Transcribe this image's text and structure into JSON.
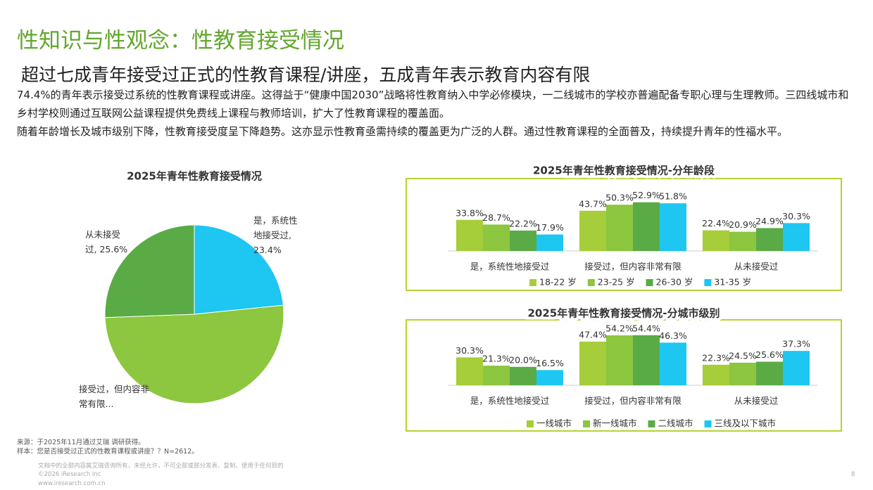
{
  "header": {
    "title": "性知识与性观念：性教育接受情况",
    "subtitle": "超过七成青年接受过正式的性教育课程/讲座，五成青年表示教育内容有限"
  },
  "body": {
    "paragraphs": [
      "74.4%的青年表示接受过系统的性教育课程或讲座。这得益于“健康中国2030”战略将性教育纳入中学必修模块，一二线城市的学校亦普遍配备专职心理与生理教师。三四线城市和乡村学校则通过互联网公益课程提供免费线上课程与教师培训，扩大了性教育课程的覆盖面。",
      "随着年龄增长及城市级别下降，性教育接受度呈下降趋势。这亦显示性教育亟需持续的覆盖更为广泛的人群。通过性教育课程的全面普及，持续提升青年的性福水平。"
    ]
  },
  "chart_data": [
    {
      "type": "pie",
      "title": "2025年青年性教育接受情况",
      "labels": [
        "是，系统性地接受过, 23.4%",
        "接受过，但内容非常有限...",
        "从未接受过, 25.6%"
      ],
      "values": [
        23.4,
        51.0,
        25.6
      ],
      "colors": [
        "#1ec6f2",
        "#8dc63f",
        "#5aab46"
      ]
    },
    {
      "type": "bar",
      "title": "2025年青年性教育接受情况-分年龄段",
      "categories": [
        "是，系统性地接受过",
        "接受过，但内容非常有限",
        "从未接受过"
      ],
      "ylim": [
        0,
        55
      ],
      "series": [
        {
          "name": "18-22 岁",
          "color": "#a6cd3a",
          "values": [
            33.8,
            43.7,
            22.4
          ],
          "value_labels": [
            "33.8%",
            "43.7%",
            "22.4%"
          ]
        },
        {
          "name": "23-25 岁",
          "color": "#8dc63f",
          "values": [
            28.7,
            50.3,
            20.9
          ],
          "value_labels": [
            "28.7%",
            "50.3%",
            "20.9%"
          ]
        },
        {
          "name": "26-30 岁",
          "color": "#5aab46",
          "values": [
            22.2,
            52.9,
            24.9
          ],
          "value_labels": [
            "22.2%",
            "52.9%",
            "24.9%"
          ]
        },
        {
          "name": "31-35 岁",
          "color": "#1ec6f2",
          "values": [
            17.9,
            51.8,
            30.3
          ],
          "value_labels": [
            "17.9%",
            "51.8%",
            "30.3%"
          ]
        }
      ]
    },
    {
      "type": "bar",
      "title": "2025年青年性教育接受情况-分城市级别",
      "categories": [
        "是，系统性地接受过",
        "接受过，但内容非常有限",
        "从未接受过"
      ],
      "ylim": [
        0,
        55
      ],
      "series": [
        {
          "name": "一线城市",
          "color": "#a6cd3a",
          "values": [
            30.3,
            47.4,
            22.3
          ],
          "value_labels": [
            "30.3%",
            "47.4%",
            "22.3%"
          ]
        },
        {
          "name": "新一线城市",
          "color": "#8dc63f",
          "values": [
            21.3,
            54.2,
            24.5
          ],
          "value_labels": [
            "21.3%",
            "54.2%",
            "24.5%"
          ]
        },
        {
          "name": "二线城市",
          "color": "#5aab46",
          "values": [
            20.0,
            54.4,
            25.6
          ],
          "value_labels": [
            "20.0%",
            "54.4%",
            "25.6%"
          ]
        },
        {
          "name": "三线及以下城市",
          "color": "#1ec6f2",
          "values": [
            16.5,
            46.3,
            37.3
          ],
          "value_labels": [
            "16.5%",
            "46.3%",
            "37.3%"
          ]
        }
      ]
    }
  ],
  "footer": {
    "source": "来源：于2025年11月通过艾瑞 调研获得。",
    "sample": "样本：您是否接受过正式的性教育课程或讲座？？N=2612。",
    "disclaimer": "文档中的全部内容属艾瑞咨询所有，未经允许，不可全部或部分发表、复制、使用于任何目的",
    "copyright": "©2026 iResearch Inc",
    "website": "www.iresearch.com.cn",
    "page": "8"
  }
}
